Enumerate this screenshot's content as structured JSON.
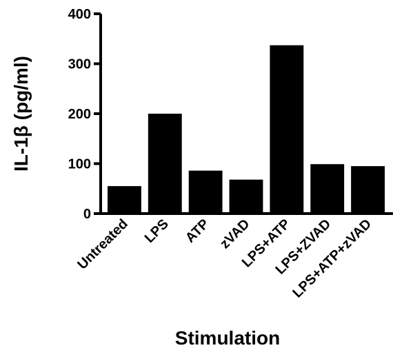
{
  "chart_data": {
    "type": "bar",
    "title": "",
    "xlabel": "Stimulation",
    "ylabel": "IL-1β (pg/ml)",
    "ylim": [
      0,
      400
    ],
    "yticks": [
      0,
      100,
      200,
      300,
      400
    ],
    "categories": [
      "Untreated",
      "LPS",
      "ATP",
      "zVAD",
      "LPS+ATP",
      "LPS+ZVAD",
      "LPS+ATP+zVAD"
    ],
    "values": [
      55,
      200,
      86,
      68,
      337,
      99,
      95
    ],
    "grid": false,
    "legend": "none",
    "bar_color": "#000000"
  }
}
